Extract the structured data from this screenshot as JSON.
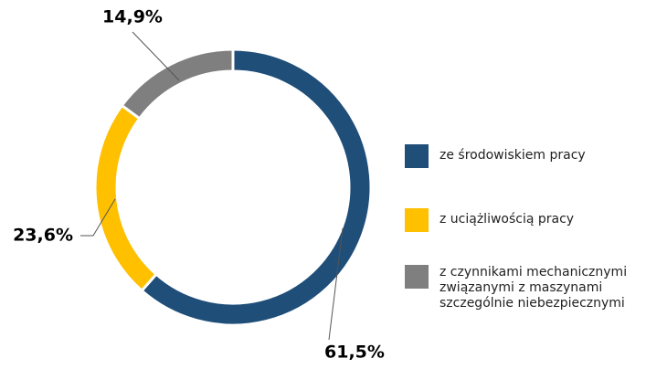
{
  "chart_data": {
    "type": "donut",
    "categories": [
      "ze środowiskiem pracy",
      "z uciążliwością pracy",
      "z czynnikami mechanicznymi związanymi z maszynami szczególnie niebezpiecznymi"
    ],
    "values": [
      61.5,
      23.6,
      14.9
    ],
    "value_labels": [
      "61,5%",
      "23,6%",
      "14,9%"
    ],
    "colors": [
      "#1f4e79",
      "#ffc000",
      "#7f7f7f"
    ]
  }
}
